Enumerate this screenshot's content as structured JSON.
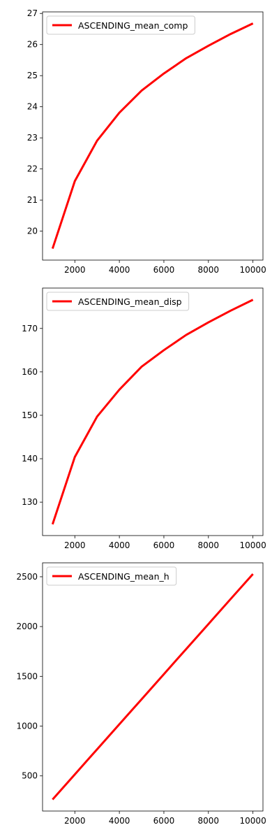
{
  "chart_data": [
    {
      "type": "line",
      "title": "",
      "xlabel": "",
      "ylabel": "",
      "xlim": [
        550,
        10450
      ],
      "ylim": [
        19.07,
        27.05
      ],
      "xticks": [
        2000,
        4000,
        6000,
        8000,
        10000
      ],
      "yticks": [
        20,
        21,
        22,
        23,
        24,
        25,
        26,
        27
      ],
      "grid": false,
      "legend": "top-left",
      "series": [
        {
          "name": "ASCENDING_mean_comp",
          "color": "#ff0000",
          "x": [
            1000,
            2000,
            3000,
            4000,
            5000,
            6000,
            7000,
            8000,
            9000,
            10000
          ],
          "y": [
            19.44,
            21.61,
            22.91,
            23.81,
            24.52,
            25.07,
            25.56,
            25.96,
            26.34,
            26.68
          ]
        }
      ]
    },
    {
      "type": "line",
      "title": "",
      "xlabel": "",
      "ylabel": "",
      "xlim": [
        550,
        10450
      ],
      "ylim": [
        122.3,
        179.3
      ],
      "xticks": [
        2000,
        4000,
        6000,
        8000,
        10000
      ],
      "yticks": [
        130,
        140,
        150,
        160,
        170
      ],
      "grid": false,
      "legend": "top-left",
      "series": [
        {
          "name": "ASCENDING_mean_disp",
          "color": "#ff0000",
          "x": [
            1000,
            2000,
            3000,
            4000,
            5000,
            6000,
            7000,
            8000,
            9000,
            10000
          ],
          "y": [
            124.9,
            140.4,
            149.7,
            155.9,
            161.2,
            165.0,
            168.5,
            171.4,
            174.1,
            176.6
          ]
        }
      ]
    },
    {
      "type": "line",
      "title": "",
      "xlabel": "",
      "ylabel": "",
      "xlim": [
        550,
        10450
      ],
      "ylim": [
        147,
        2640
      ],
      "xticks": [
        2000,
        4000,
        6000,
        8000,
        10000
      ],
      "yticks": [
        500,
        1000,
        1500,
        2000,
        2500
      ],
      "grid": false,
      "legend": "top-left",
      "series": [
        {
          "name": "ASCENDING_mean_h",
          "color": "#ff0000",
          "x": [
            1000,
            2000,
            3000,
            4000,
            5000,
            6000,
            7000,
            8000,
            9000,
            10000
          ],
          "y": [
            263,
            515,
            767,
            1019,
            1270,
            1522,
            1774,
            2025,
            2277,
            2528
          ]
        }
      ]
    }
  ]
}
